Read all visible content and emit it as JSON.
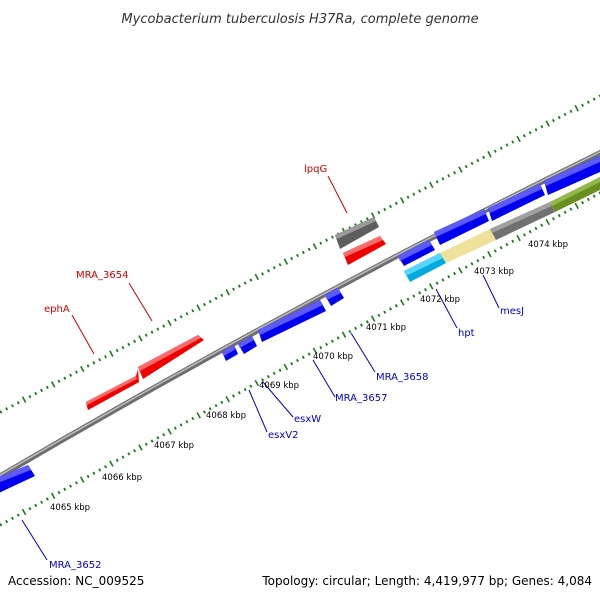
{
  "title": "Mycobacterium tuberculosis H37Ra, complete genome",
  "footer": {
    "accession": "Accession: NC_009525",
    "summary": "Topology: circular; Length: 4,419,977 bp; Genes: 4,084"
  },
  "colors": {
    "forward_gene": "#ff0000",
    "forward_label": "#cc0000",
    "reverse_gene": "#0000ff",
    "reverse_label": "#0000cc",
    "grey_gene": "#6a6a6a",
    "tick": "#1a7a1a",
    "backbone": "#888888"
  },
  "ruler": [
    "4065 kbp",
    "4066 kbp",
    "4067 kbp",
    "4068 kbp",
    "4069 kbp",
    "4070 kbp",
    "4071 kbp",
    "4072 kbp",
    "4073 kbp",
    "4074 kbp"
  ],
  "gene_labels": {
    "lpqG": "lpqG",
    "MRA_3654": "MRA_3654",
    "ephA": "ephA",
    "MRA_3652": "MRA_3652",
    "esxV2": "esxV2",
    "esxW": "esxW",
    "MRA_3657": "MRA_3657",
    "MRA_3658": "MRA_3658",
    "hpt": "hpt",
    "mesJ": "mesJ"
  }
}
